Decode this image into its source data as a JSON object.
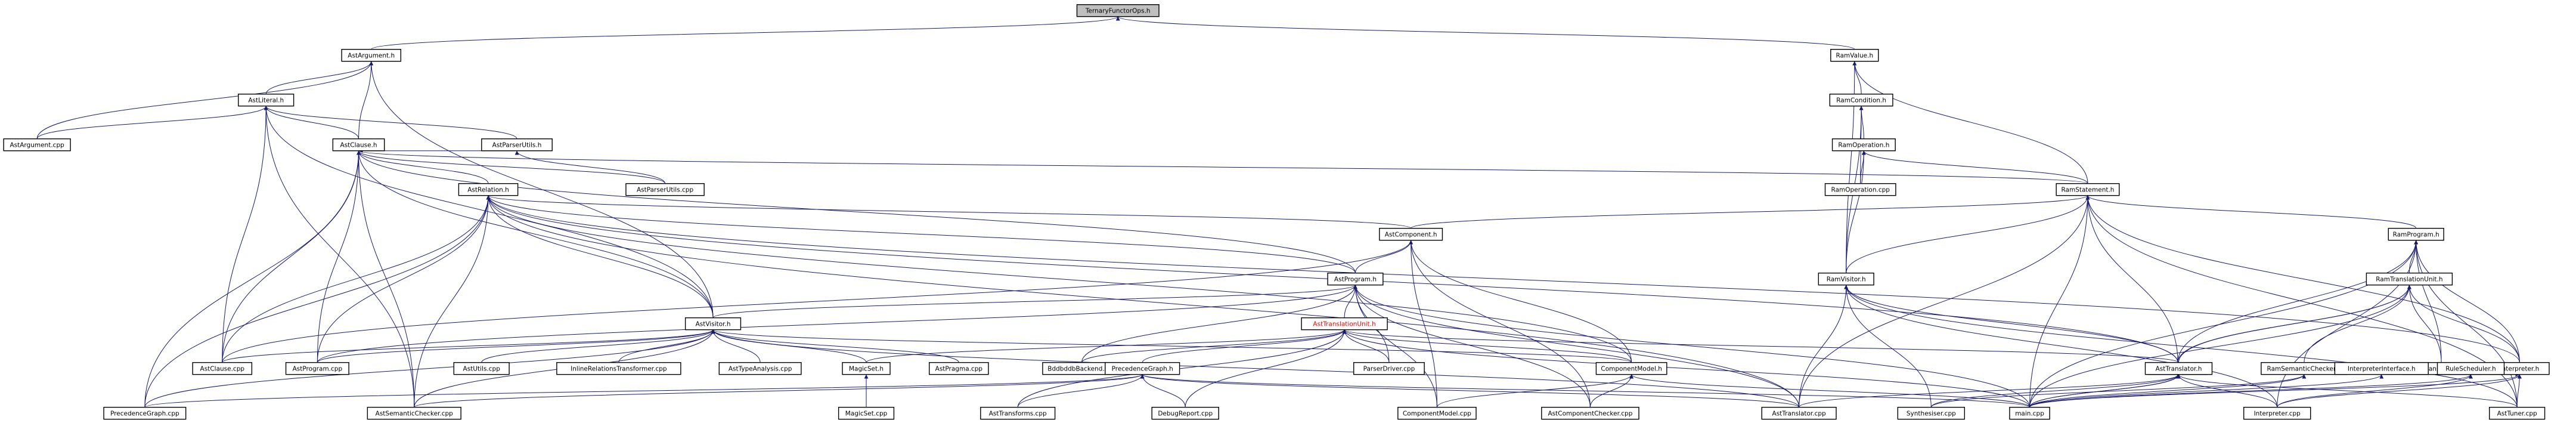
{
  "colors": {
    "edge": "#191970",
    "root_fill": "#bfbfbf",
    "highlight_text": "#ff0000"
  },
  "nodes": [
    {
      "id": "TernaryFunctorOps_h",
      "label": "TernaryFunctorOps.h",
      "root": true
    },
    {
      "id": "AstArgument_h",
      "label": "AstArgument.h"
    },
    {
      "id": "RamValue_h",
      "label": "RamValue.h"
    },
    {
      "id": "AstLiteral_h",
      "label": "AstLiteral.h"
    },
    {
      "id": "RamCondition_h",
      "label": "RamCondition.h"
    },
    {
      "id": "AstArgument_cpp",
      "label": "AstArgument.cpp"
    },
    {
      "id": "AstClause_h",
      "label": "AstClause.h"
    },
    {
      "id": "AstParserUtils_h",
      "label": "AstParserUtils.h"
    },
    {
      "id": "RamOperation_h",
      "label": "RamOperation.h"
    },
    {
      "id": "AstRelation_h",
      "label": "AstRelation.h"
    },
    {
      "id": "AstParserUtils_cpp",
      "label": "AstParserUtils.cpp"
    },
    {
      "id": "RamOperation_cpp",
      "label": "RamOperation.cpp"
    },
    {
      "id": "RamStatement_h",
      "label": "RamStatement.h"
    },
    {
      "id": "AstComponent_h",
      "label": "AstComponent.h"
    },
    {
      "id": "RamProgram_h",
      "label": "RamProgram.h"
    },
    {
      "id": "AstProgram_h",
      "label": "AstProgram.h"
    },
    {
      "id": "RamVisitor_h",
      "label": "RamVisitor.h"
    },
    {
      "id": "RamTranslationUnit_h",
      "label": "RamTranslationUnit.h"
    },
    {
      "id": "AstTranslationUnit_h",
      "label": "AstTranslationUnit.h",
      "highlight": true
    },
    {
      "id": "AstVisitor_h",
      "label": "AstVisitor.h"
    },
    {
      "id": "Synthesiser_h",
      "label": "Synthesiser.h"
    },
    {
      "id": "RamSemanticChecker_h",
      "label": "RamSemanticChecker.h"
    },
    {
      "id": "RamTransformer_cpp",
      "label": "RamTransformer.cpp"
    },
    {
      "id": "Interpreter_h",
      "label": "Interpreter.h"
    },
    {
      "id": "AstClause_cpp",
      "label": "AstClause.cpp"
    },
    {
      "id": "AstProgram_cpp",
      "label": "AstProgram.cpp"
    },
    {
      "id": "AstUtils_cpp",
      "label": "AstUtils.cpp"
    },
    {
      "id": "InlineRelationsTransformer_cpp",
      "label": "InlineRelationsTransformer.cpp"
    },
    {
      "id": "AstTypeAnalysis_cpp",
      "label": "AstTypeAnalysis.cpp"
    },
    {
      "id": "MagicSet_h",
      "label": "MagicSet.h"
    },
    {
      "id": "AstPragma_cpp",
      "label": "AstPragma.cpp"
    },
    {
      "id": "BddbddbBackend_cpp",
      "label": "BddbddbBackend.cpp"
    },
    {
      "id": "ParserDriver_cpp",
      "label": "ParserDriver.cpp"
    },
    {
      "id": "ComponentModel_h",
      "label": "ComponentModel.h"
    },
    {
      "id": "InterpreterInterface_h",
      "label": "InterpreterInterface.h"
    },
    {
      "id": "AstTranslator_h",
      "label": "AstTranslator.h"
    },
    {
      "id": "RuleScheduler_h",
      "label": "RuleScheduler.h"
    },
    {
      "id": "PrecedenceGraph_h",
      "label": "PrecedenceGraph.h"
    },
    {
      "id": "MagicSet_cpp",
      "label": "MagicSet.cpp"
    },
    {
      "id": "PrecedenceGraph_cpp",
      "label": "PrecedenceGraph.cpp"
    },
    {
      "id": "AstSemanticChecker_cpp",
      "label": "AstSemanticChecker.cpp"
    },
    {
      "id": "AstTransforms_cpp",
      "label": "AstTransforms.cpp"
    },
    {
      "id": "DebugReport_cpp",
      "label": "DebugReport.cpp"
    },
    {
      "id": "ComponentModel_cpp",
      "label": "ComponentModel.cpp"
    },
    {
      "id": "AstComponentChecker_cpp",
      "label": "AstComponentChecker.cpp"
    },
    {
      "id": "AstTranslator_cpp",
      "label": "AstTranslator.cpp"
    },
    {
      "id": "Synthesiser_cpp",
      "label": "Synthesiser.cpp"
    },
    {
      "id": "main_cpp",
      "label": "main.cpp"
    },
    {
      "id": "Interpreter_cpp",
      "label": "Interpreter.cpp"
    },
    {
      "id": "AstTuner_cpp",
      "label": "AstTuner.cpp"
    }
  ],
  "edges": [
    [
      "AstArgument_h",
      "TernaryFunctorOps_h"
    ],
    [
      "RamValue_h",
      "TernaryFunctorOps_h"
    ],
    [
      "AstLiteral_h",
      "AstArgument_h"
    ],
    [
      "AstClause_h",
      "AstArgument_h"
    ],
    [
      "AstArgument_cpp",
      "AstArgument_h"
    ],
    [
      "AstVisitor_h",
      "AstArgument_h"
    ],
    [
      "AstArgument_cpp",
      "AstLiteral_h"
    ],
    [
      "AstClause_h",
      "AstLiteral_h"
    ],
    [
      "AstParserUtils_h",
      "AstLiteral_h"
    ],
    [
      "AstClause_cpp",
      "AstLiteral_h"
    ],
    [
      "AstVisitor_h",
      "AstLiteral_h"
    ],
    [
      "AstSemanticChecker_cpp",
      "AstLiteral_h"
    ],
    [
      "AstParserUtils_h",
      "AstClause_h"
    ],
    [
      "AstRelation_h",
      "AstClause_h"
    ],
    [
      "AstParserUtils_cpp",
      "AstClause_h"
    ],
    [
      "RamStatement_h",
      "AstClause_h"
    ],
    [
      "AstClause_cpp",
      "AstClause_h"
    ],
    [
      "AstProgram_cpp",
      "AstClause_h"
    ],
    [
      "AstVisitor_h",
      "AstClause_h"
    ],
    [
      "PrecedenceGraph_cpp",
      "AstClause_h"
    ],
    [
      "AstSemanticChecker_cpp",
      "AstClause_h"
    ],
    [
      "AstProgram_h",
      "AstClause_h"
    ],
    [
      "AstParserUtils_cpp",
      "AstParserUtils_h"
    ],
    [
      "AstComponent_h",
      "AstRelation_h"
    ],
    [
      "AstProgram_h",
      "AstRelation_h"
    ],
    [
      "AstVisitor_h",
      "AstRelation_h"
    ],
    [
      "AstClause_cpp",
      "AstRelation_h"
    ],
    [
      "AstProgram_cpp",
      "AstRelation_h"
    ],
    [
      "PrecedenceGraph_cpp",
      "AstRelation_h"
    ],
    [
      "AstSemanticChecker_cpp",
      "AstRelation_h"
    ],
    [
      "ComponentModel_h",
      "AstRelation_h"
    ],
    [
      "AstTranslator_cpp",
      "AstRelation_h"
    ],
    [
      "Interpreter_h",
      "AstRelation_h"
    ],
    [
      "Synthesiser_h",
      "AstRelation_h"
    ],
    [
      "RamCondition_h",
      "RamValue_h"
    ],
    [
      "RamStatement_h",
      "RamValue_h"
    ],
    [
      "RamVisitor_h",
      "RamValue_h"
    ],
    [
      "RamOperation_h",
      "RamCondition_h"
    ],
    [
      "RamOperation_cpp",
      "RamCondition_h"
    ],
    [
      "RamVisitor_h",
      "RamCondition_h"
    ],
    [
      "RamStatement_h",
      "RamOperation_h"
    ],
    [
      "RamOperation_cpp",
      "RamOperation_h"
    ],
    [
      "RamVisitor_h",
      "RamOperation_h"
    ],
    [
      "RamProgram_h",
      "RamStatement_h"
    ],
    [
      "RamVisitor_h",
      "RamStatement_h"
    ],
    [
      "Synthesiser_h",
      "RamStatement_h"
    ],
    [
      "Interpreter_h",
      "RamStatement_h"
    ],
    [
      "AstTranslator_cpp",
      "RamStatement_h"
    ],
    [
      "main_cpp",
      "RamStatement_h"
    ],
    [
      "AstTuner_cpp",
      "RamStatement_h"
    ],
    [
      "AstComponent_h",
      "RamStatement_h"
    ],
    [
      "AstProgram_h",
      "AstComponent_h"
    ],
    [
      "ComponentModel_h",
      "AstComponent_h"
    ],
    [
      "AstClause_cpp",
      "AstComponent_h"
    ],
    [
      "ComponentModel_cpp",
      "AstComponent_h"
    ],
    [
      "AstComponentChecker_cpp",
      "AstComponent_h"
    ],
    [
      "RamTranslationUnit_h",
      "RamProgram_h"
    ],
    [
      "Synthesiser_h",
      "RamProgram_h"
    ],
    [
      "Interpreter_h",
      "RamProgram_h"
    ],
    [
      "RamTransformer_cpp",
      "RamProgram_h"
    ],
    [
      "main_cpp",
      "RamProgram_h"
    ],
    [
      "Interpreter_cpp",
      "RamProgram_h"
    ],
    [
      "AstTuner_cpp",
      "RamProgram_h"
    ],
    [
      "AstTranslationUnit_h",
      "AstProgram_h"
    ],
    [
      "AstVisitor_h",
      "AstProgram_h"
    ],
    [
      "AstProgram_cpp",
      "AstProgram_h"
    ],
    [
      "ParserDriver_cpp",
      "AstProgram_h"
    ],
    [
      "ComponentModel_cpp",
      "AstProgram_h"
    ],
    [
      "AstComponentChecker_cpp",
      "AstProgram_h"
    ],
    [
      "AstTranslator_cpp",
      "AstProgram_h"
    ],
    [
      "main_cpp",
      "AstProgram_h"
    ],
    [
      "BddbddbBackend_cpp",
      "AstProgram_h"
    ],
    [
      "Synthesiser_h",
      "RamVisitor_h"
    ],
    [
      "AstTranslator_cpp",
      "RamVisitor_h"
    ],
    [
      "Synthesiser_cpp",
      "RamVisitor_h"
    ],
    [
      "Interpreter_cpp",
      "RamVisitor_h"
    ],
    [
      "AstTuner_cpp",
      "RamVisitor_h"
    ],
    [
      "RamSemanticChecker_h",
      "RamTranslationUnit_h"
    ],
    [
      "RamTransformer_cpp",
      "RamTranslationUnit_h"
    ],
    [
      "Interpreter_h",
      "RamTranslationUnit_h"
    ],
    [
      "AstTranslator_h",
      "RamTranslationUnit_h"
    ],
    [
      "main_cpp",
      "RamTranslationUnit_h"
    ],
    [
      "Synthesiser_h",
      "RamTranslationUnit_h"
    ],
    [
      "MagicSet_h",
      "AstTranslationUnit_h"
    ],
    [
      "BddbddbBackend_cpp",
      "AstTranslationUnit_h"
    ],
    [
      "ParserDriver_cpp",
      "AstTranslationUnit_h"
    ],
    [
      "ComponentModel_h",
      "AstTranslationUnit_h"
    ],
    [
      "AstTranslator_h",
      "AstTranslationUnit_h"
    ],
    [
      "PrecedenceGraph_h",
      "AstTranslationUnit_h"
    ],
    [
      "DebugReport_cpp",
      "AstTranslationUnit_h"
    ],
    [
      "AstTransforms_cpp",
      "AstTranslationUnit_h"
    ],
    [
      "main_cpp",
      "AstTranslationUnit_h"
    ],
    [
      "AstClause_cpp",
      "AstVisitor_h"
    ],
    [
      "AstProgram_cpp",
      "AstVisitor_h"
    ],
    [
      "AstUtils_cpp",
      "AstVisitor_h"
    ],
    [
      "InlineRelationsTransformer_cpp",
      "AstVisitor_h"
    ],
    [
      "AstTypeAnalysis_cpp",
      "AstVisitor_h"
    ],
    [
      "MagicSet_h",
      "AstVisitor_h"
    ],
    [
      "AstPragma_cpp",
      "AstVisitor_h"
    ],
    [
      "PrecedenceGraph_cpp",
      "AstVisitor_h"
    ],
    [
      "AstSemanticChecker_cpp",
      "AstVisitor_h"
    ],
    [
      "ComponentModel_h",
      "AstVisitor_h"
    ],
    [
      "AstTranslator_cpp",
      "AstVisitor_h"
    ],
    [
      "main_cpp",
      "Synthesiser_h"
    ],
    [
      "Synthesiser_cpp",
      "Synthesiser_h"
    ],
    [
      "main_cpp",
      "RamSemanticChecker_h"
    ],
    [
      "Synthesiser_cpp",
      "RamSemanticChecker_h"
    ],
    [
      "InterpreterInterface_h",
      "Interpreter_h"
    ],
    [
      "RuleScheduler_h",
      "Interpreter_h"
    ],
    [
      "Interpreter_cpp",
      "Interpreter_h"
    ],
    [
      "AstTuner_cpp",
      "Interpreter_h"
    ],
    [
      "main_cpp",
      "Interpreter_h"
    ],
    [
      "MagicSet_cpp",
      "MagicSet_h"
    ],
    [
      "ComponentModel_cpp",
      "ComponentModel_h"
    ],
    [
      "AstComponentChecker_cpp",
      "ComponentModel_h"
    ],
    [
      "main_cpp",
      "ComponentModel_h"
    ],
    [
      "main_cpp",
      "InterpreterInterface_h"
    ],
    [
      "AstTranslator_cpp",
      "AstTranslator_h"
    ],
    [
      "main_cpp",
      "AstTranslator_h"
    ],
    [
      "Interpreter_cpp",
      "AstTranslator_h"
    ],
    [
      "AstTuner_cpp",
      "AstTranslator_h"
    ],
    [
      "Interpreter_cpp",
      "RuleScheduler_h"
    ],
    [
      "main_cpp",
      "RuleScheduler_h"
    ],
    [
      "AstSemanticChecker_cpp",
      "PrecedenceGraph_h"
    ],
    [
      "AstTransforms_cpp",
      "PrecedenceGraph_h"
    ],
    [
      "DebugReport_cpp",
      "PrecedenceGraph_h"
    ],
    [
      "AstTranslator_cpp",
      "PrecedenceGraph_h"
    ],
    [
      "main_cpp",
      "PrecedenceGraph_h"
    ],
    [
      "PrecedenceGraph_cpp",
      "PrecedenceGraph_h"
    ]
  ]
}
